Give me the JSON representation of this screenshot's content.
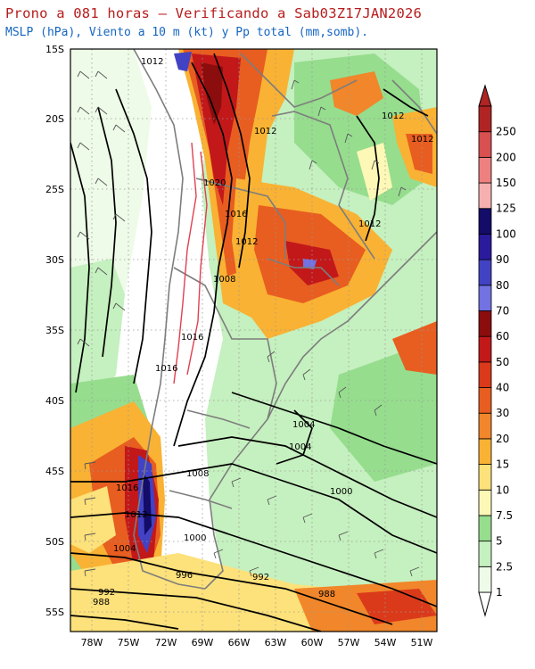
{
  "title": "Prono a 081 horas — Verificando a Sab03Z17JAN2026",
  "subtitle": "MSLP (hPa), Viento a 10 m (kt) y Pp total (mm,somb).",
  "lat_labels": [
    "15S",
    "20S",
    "25S",
    "30S",
    "35S",
    "40S",
    "45S",
    "50S",
    "55S"
  ],
  "lon_labels": [
    "78W",
    "75W",
    "72W",
    "69W",
    "66W",
    "63W",
    "60W",
    "57W",
    "54W",
    "51W"
  ],
  "colorbar": {
    "labels": [
      "1",
      "2.5",
      "5",
      "7.5",
      "10",
      "15",
      "20",
      "30",
      "40",
      "50",
      "60",
      "70",
      "80",
      "90",
      "100",
      "125",
      "150",
      "200",
      "250"
    ],
    "colors": [
      "#eefbe8",
      "#c5f0bf",
      "#96dd8e",
      "#fdf8b6",
      "#fde17a",
      "#f9b233",
      "#f1862a",
      "#e85d20",
      "#da3a1a",
      "#c2181a",
      "#8b0d0d",
      "#7272e2",
      "#4242c4",
      "#2a1a9c",
      "#130c68",
      "#f7b0b0",
      "#ee8080",
      "#d95050",
      "#b02424"
    ]
  },
  "isobar_labels": [
    "1012",
    "1012",
    "1012",
    "1012",
    "1012",
    "1020",
    "1016",
    "1012",
    "1008",
    "1016",
    "1016",
    "1004",
    "1004",
    "1000",
    "1008",
    "1016",
    "1012",
    "1004",
    "1000",
    "996",
    "992",
    "992",
    "988",
    "988"
  ]
}
